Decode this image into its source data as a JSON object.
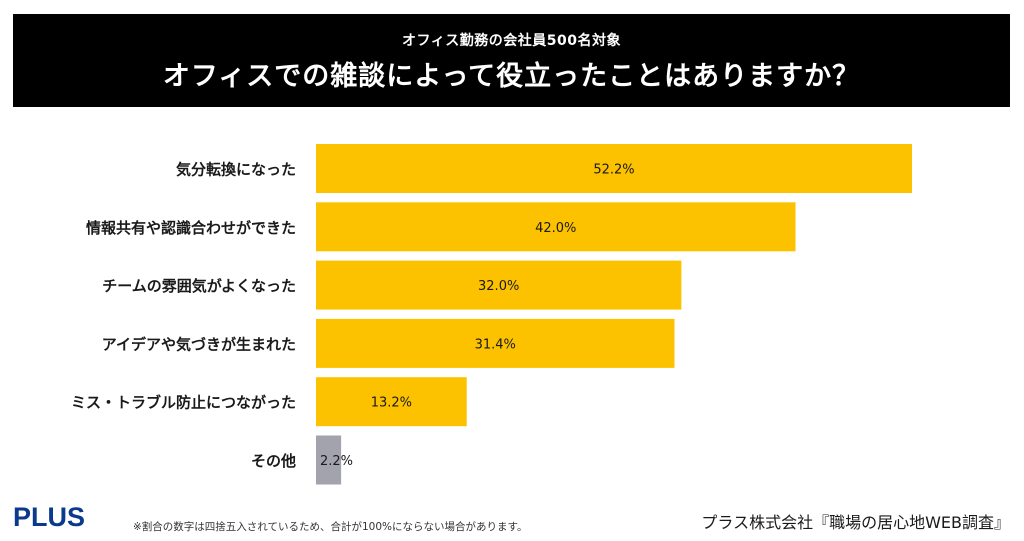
{
  "header": {
    "subtitle": "オフィス勤務の会社員500名対象",
    "title": "オフィスでの雑談によって役立ったことはありますか？"
  },
  "footer": {
    "logo_text": "PLUS",
    "note": "※割合の数字は四捨五入されているため、合計が100%にならない場合があります。",
    "source": "プラス株式会社『職場の居心地WEB調査』"
  },
  "colors": {
    "bar": "#fcc200",
    "bar_other": "#a3a3ae",
    "header_bg": "#000000",
    "logo": "#0a3a8c"
  },
  "chart_data": {
    "type": "bar",
    "orientation": "horizontal",
    "categories": [
      "気分転換になった",
      "情報共有や認識合わせができた",
      "チームの雰囲気がよくなった",
      "アイデアや気づきが生まれた",
      "ミス・トラブル防止につながった",
      "その他"
    ],
    "values": [
      52.2,
      42.0,
      32.0,
      31.4,
      13.2,
      2.2
    ],
    "value_labels": [
      "52.2%",
      "42.0%",
      "32.0%",
      "31.4%",
      "13.2%",
      "2.2%"
    ],
    "unit": "%",
    "grid": false,
    "legend": "none"
  }
}
